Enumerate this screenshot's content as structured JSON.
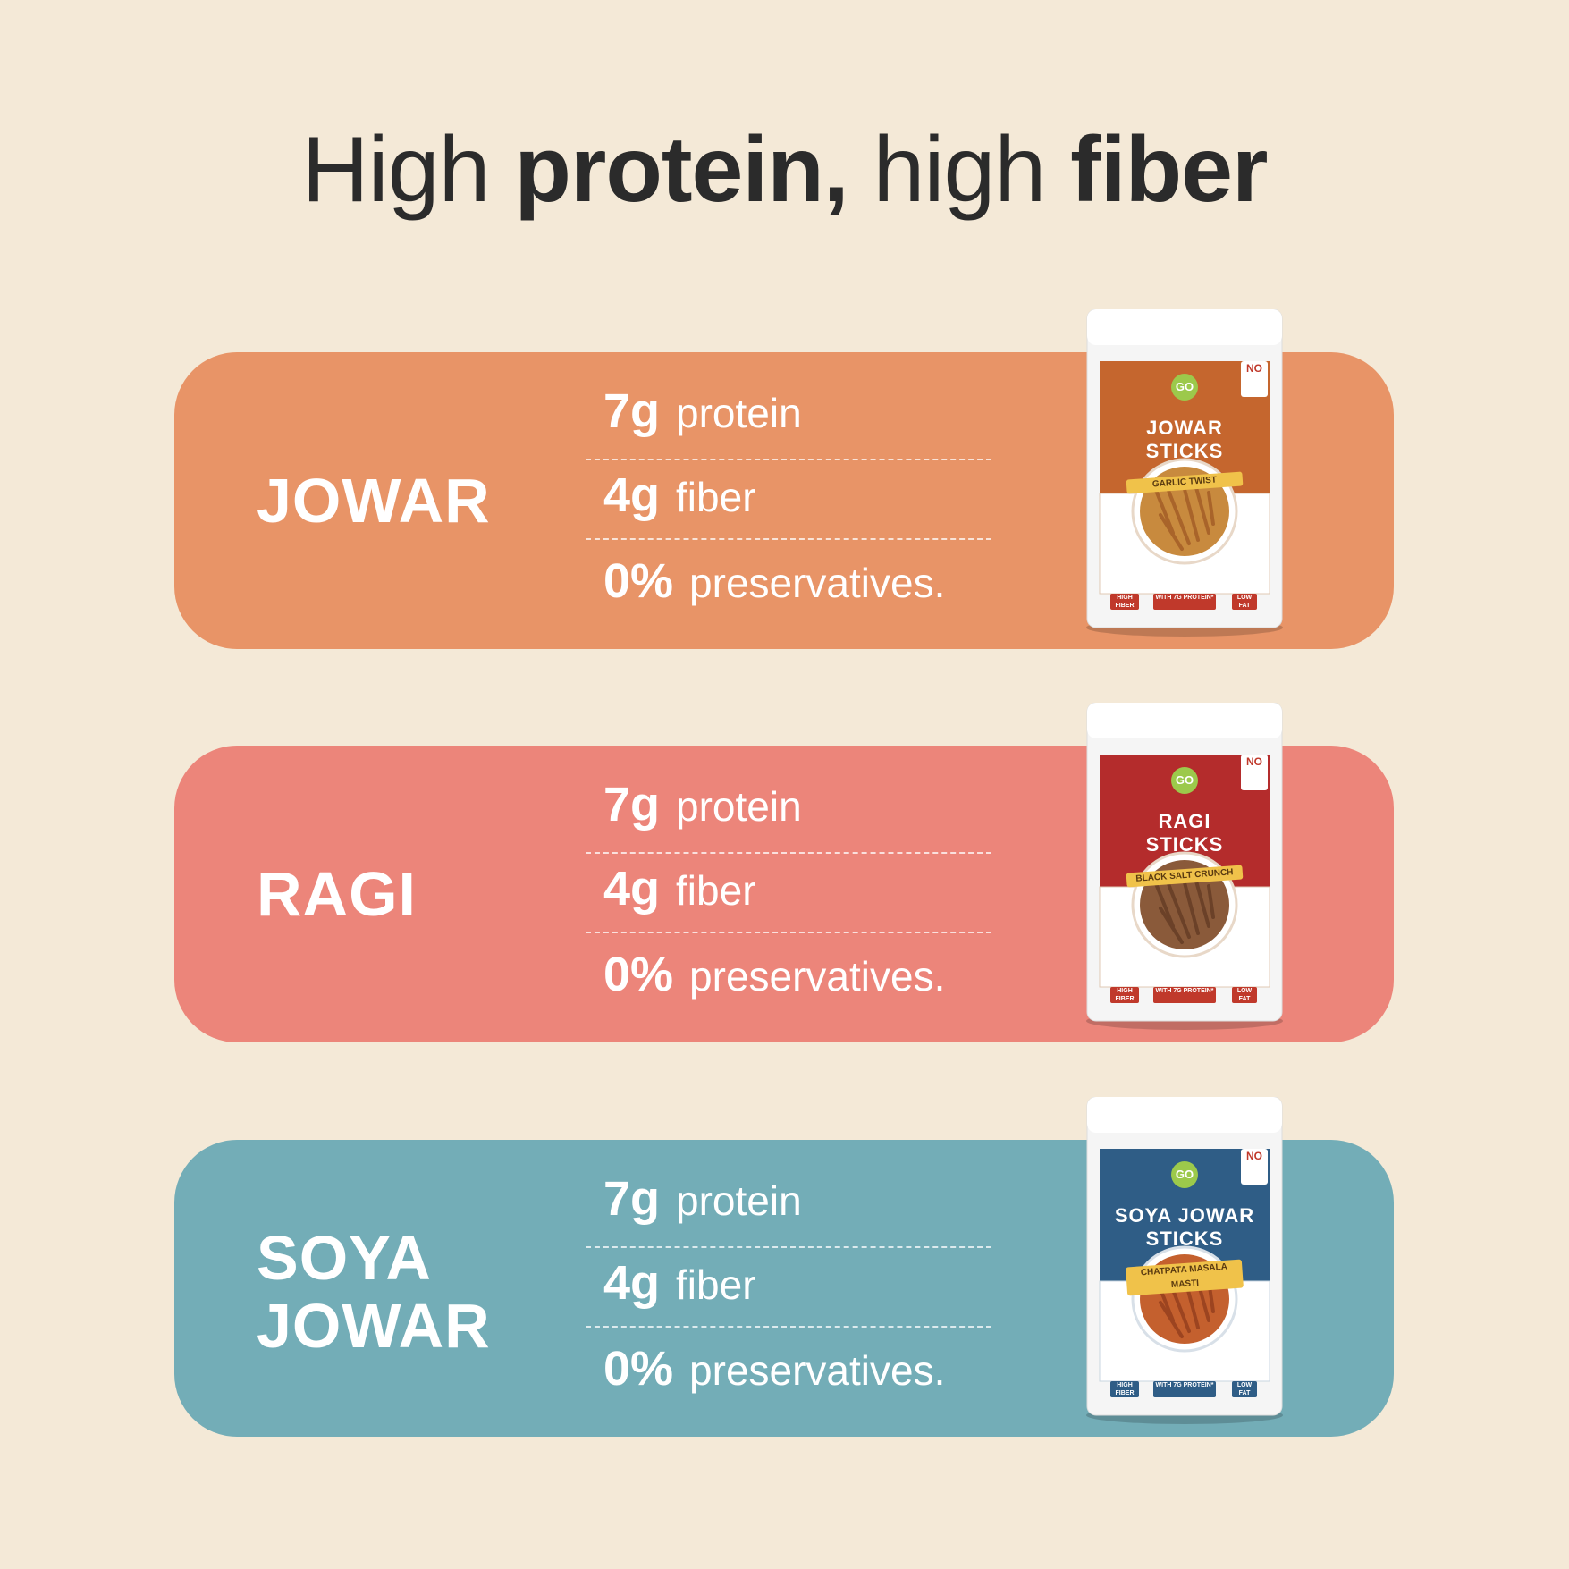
{
  "headline": {
    "part1": "High ",
    "part2": "protein,",
    "part3": " high ",
    "part4": "fiber"
  },
  "colors": {
    "background": "#f4e9d7",
    "jowar": "#e89467",
    "ragi": "#ec857a",
    "soya_jowar": "#73adb7",
    "headline": "#2b2b2b"
  },
  "cards": [
    {
      "name_line1": "JOWAR",
      "name_line2": "",
      "protein_value": "7g",
      "protein_label": "protein",
      "fiber_value": "4g",
      "fiber_label": "fiber",
      "preservatives_value": "0%",
      "preservatives_label": "preservatives.",
      "pack": {
        "brand": "GO",
        "title_line1": "JOWAR",
        "title_line2": "STICKS",
        "flavour": "GARLIC TWIST",
        "no_palm": "NO",
        "badge_left": "HIGH FIBER",
        "badge_center": "WITH 7G PROTEIN*",
        "badge_right": "LOW FAT"
      }
    },
    {
      "name_line1": "RAGI",
      "name_line2": "",
      "protein_value": "7g",
      "protein_label": "protein",
      "fiber_value": "4g",
      "fiber_label": "fiber",
      "preservatives_value": "0%",
      "preservatives_label": "preservatives.",
      "pack": {
        "brand": "GO",
        "title_line1": "RAGI",
        "title_line2": "STICKS",
        "flavour": "BLACK SALT CRUNCH",
        "no_palm": "NO",
        "badge_left": "HIGH FIBER",
        "badge_center": "WITH 7G PROTEIN*",
        "badge_right": "LOW FAT"
      }
    },
    {
      "name_line1": "SOYA",
      "name_line2": "JOWAR",
      "protein_value": "7g",
      "protein_label": "protein",
      "fiber_value": "4g",
      "fiber_label": "fiber",
      "preservatives_value": "0%",
      "preservatives_label": "preservatives.",
      "pack": {
        "brand": "GO",
        "title_line1": "SOYA JOWAR",
        "title_line2": "STICKS",
        "flavour": "CHATPATA MASALA MASTI",
        "no_palm": "NO",
        "badge_left": "HIGH FIBER",
        "badge_center": "WITH 7G PROTEIN*",
        "badge_right": "LOW FAT"
      }
    }
  ]
}
